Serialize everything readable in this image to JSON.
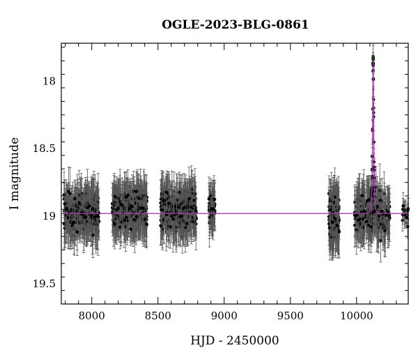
{
  "chart_data": {
    "type": "scatter",
    "title": "OGLE-2023-BLG-0861",
    "xlabel": "HJD - 2450000",
    "ylabel": "I magnitude",
    "xlim": [
      7770,
      10390
    ],
    "ylim": [
      19.65,
      17.72
    ],
    "y_inverted": true,
    "xticks": [
      8000,
      8500,
      9000,
      9500,
      10000
    ],
    "yticks": [
      18,
      18.5,
      19,
      19.5
    ],
    "ytick_labels": [
      "18",
      "18.5",
      "19",
      "19.5"
    ],
    "grid": false,
    "legend": "none",
    "baseline_mag": 18.98,
    "series": [
      {
        "kind": "photometry",
        "color": "#000000",
        "errorbar_color": "#555555",
        "seasons": [
          {
            "start": 7790,
            "end": 8055,
            "mean": 18.98,
            "scatter": 0.12,
            "error": 0.15,
            "count": 300
          },
          {
            "start": 8155,
            "end": 8420,
            "mean": 18.95,
            "scatter": 0.11,
            "error": 0.15,
            "count": 300
          },
          {
            "start": 8520,
            "end": 8790,
            "mean": 18.96,
            "scatter": 0.12,
            "error": 0.15,
            "count": 300
          },
          {
            "start": 8885,
            "end": 8930,
            "mean": 18.96,
            "scatter": 0.1,
            "error": 0.14,
            "count": 50
          },
          {
            "start": 9790,
            "end": 9870,
            "mean": 19.0,
            "scatter": 0.13,
            "error": 0.17,
            "count": 130
          },
          {
            "start": 9985,
            "end": 10250,
            "mean": 18.98,
            "scatter": 0.12,
            "error": 0.16,
            "count": 230
          },
          {
            "start": 10345,
            "end": 10390,
            "mean": 18.98,
            "scatter": 0.06,
            "error": 0.08,
            "count": 14
          }
        ],
        "event": {
          "t0": 10125,
          "peak_mag": 17.98,
          "tE_days": 8,
          "count": 40
        }
      },
      {
        "kind": "model",
        "color": "#a23ca8",
        "t0": 10125,
        "u0": 0.37,
        "tE_days": 8,
        "baseline_mag": 18.98
      }
    ]
  }
}
